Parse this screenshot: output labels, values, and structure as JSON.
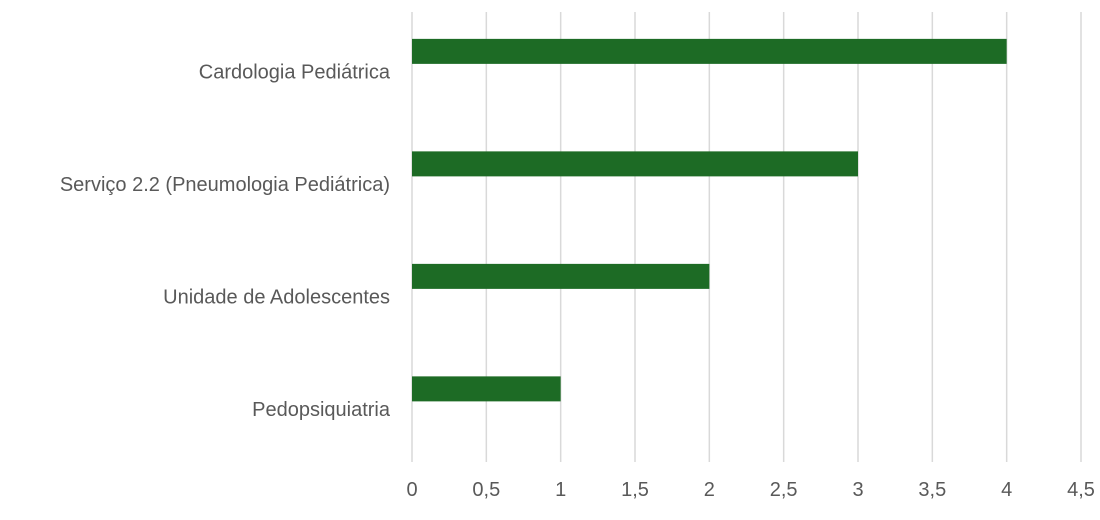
{
  "chart_data": {
    "type": "bar",
    "orientation": "horizontal",
    "title": "",
    "xlabel": "",
    "ylabel": "",
    "categories": [
      "Cardologia Pediátrica",
      "Serviço 2.2 (Pneumologia Pediátrica)",
      "Unidade de Adolescentes",
      "Pedopsiquiatria"
    ],
    "values": [
      4,
      3,
      2,
      1
    ],
    "xlim": [
      0,
      4.5
    ],
    "x_ticks": [
      0,
      0.5,
      1,
      1.5,
      2,
      2.5,
      3,
      3.5,
      4,
      4.5
    ],
    "x_tick_labels": [
      "0",
      "0,5",
      "1",
      "1,5",
      "2",
      "2,5",
      "3",
      "3,5",
      "4",
      "4,5"
    ],
    "grid": true,
    "legend": "none",
    "bar_color": "#1d6b25",
    "grid_color": "#d9d9d9",
    "text_color": "#595959"
  }
}
